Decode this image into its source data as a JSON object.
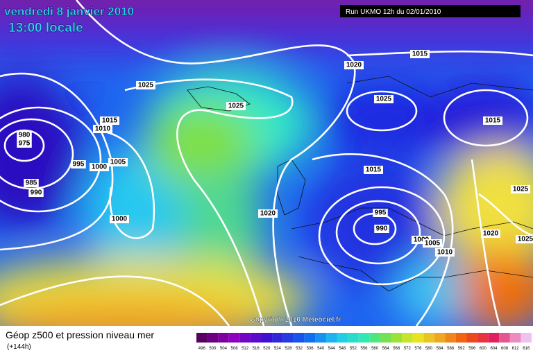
{
  "header": {
    "date": "vendredi 8 janvier 2010",
    "time": "13:00 locale",
    "run": "Run UKMO 12h du 02/01/2010"
  },
  "isobar_labels": [
    "980",
    "975",
    "985",
    "990",
    "995",
    "1000",
    "1005",
    "1010",
    "1015",
    "1025",
    "1025",
    "1000",
    "1020",
    "1020",
    "1015",
    "1025",
    "1015",
    "1015",
    "995",
    "990",
    "1000",
    "1005",
    "1010",
    "1020",
    "1025",
    "1025"
  ],
  "footer": {
    "title": "Géop z500 et pression niveau mer",
    "forecast": "(+144h)",
    "copyright": "Copyright 2010 Meteociel.fr"
  },
  "color_scale": [
    496,
    500,
    504,
    508,
    512,
    516,
    520,
    524,
    528,
    532,
    536,
    540,
    544,
    548,
    552,
    556,
    560,
    564,
    568,
    572,
    576,
    580,
    584,
    588,
    592,
    596,
    600,
    604,
    608,
    612,
    616
  ]
}
